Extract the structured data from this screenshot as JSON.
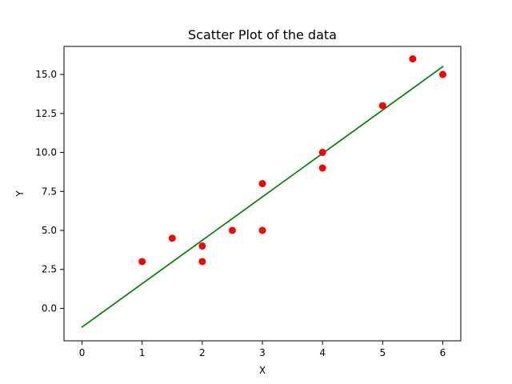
{
  "chart_data": {
    "type": "scatter",
    "title": "Scatter Plot of the data",
    "xlabel": "X",
    "ylabel": "Y",
    "xlim": [
      -0.3,
      6.3
    ],
    "ylim": [
      -2.08,
      16.8
    ],
    "xticks": [
      0,
      1,
      2,
      3,
      4,
      5,
      6
    ],
    "xtick_labels": [
      "0",
      "1",
      "2",
      "3",
      "4",
      "5",
      "6"
    ],
    "yticks": [
      0,
      2.5,
      5,
      7.5,
      10,
      12.5,
      15
    ],
    "ytick_labels": [
      "0.0",
      "2.5",
      "5.0",
      "7.5",
      "10.0",
      "12.5",
      "15.0"
    ],
    "grid": false,
    "series": [
      {
        "type": "scatter",
        "color": "#ff0000",
        "points": [
          {
            "x": 1,
            "y": 3
          },
          {
            "x": 1.5,
            "y": 4.5
          },
          {
            "x": 2,
            "y": 3
          },
          {
            "x": 2,
            "y": 4
          },
          {
            "x": 2.5,
            "y": 5
          },
          {
            "x": 3,
            "y": 5
          },
          {
            "x": 3,
            "y": 8
          },
          {
            "x": 4,
            "y": 9
          },
          {
            "x": 4,
            "y": 10
          },
          {
            "x": 5,
            "y": 13
          },
          {
            "x": 5.5,
            "y": 16
          },
          {
            "x": 6,
            "y": 15
          }
        ]
      },
      {
        "type": "line",
        "color": "#008000",
        "points": [
          {
            "x": 0,
            "y": -1.2
          },
          {
            "x": 6,
            "y": 15.5
          }
        ]
      }
    ]
  }
}
